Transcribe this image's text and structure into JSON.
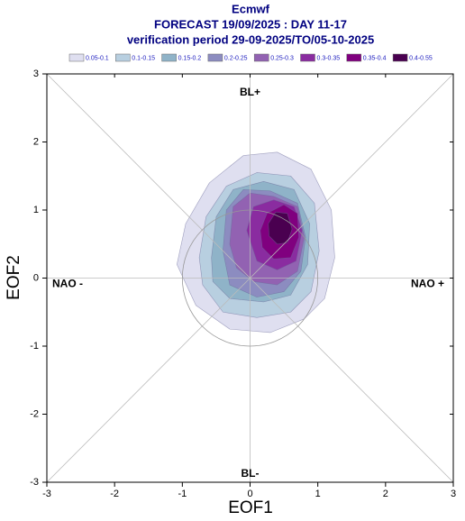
{
  "chart_data": {
    "type": "contour",
    "title": "Ecmwf",
    "subtitle": "FORECAST 19/09/2025 : DAY 11-17",
    "subtitle2": "verification period 29-09-2025/TO/05-10-2025",
    "xlabel": "EOF1",
    "ylabel": "EOF2",
    "xlim": [
      -3,
      3
    ],
    "ylim": [
      -3,
      3
    ],
    "xticks": [
      -3,
      -2,
      -1,
      0,
      1,
      2,
      3
    ],
    "yticks": [
      -3,
      -2,
      -1,
      0,
      1,
      2,
      3
    ],
    "annotations": [
      "BL+",
      "BL-",
      "NAO -",
      "NAO +"
    ],
    "series": [
      {
        "name": "0.05-0.1",
        "color": "#dfdff0",
        "x": [
          -1.08,
          -0.95,
          -0.6,
          -0.1,
          0.4,
          0.9,
          1.2,
          1.25,
          1.1,
          0.8,
          0.3,
          -0.3,
          -0.8
        ],
        "y": [
          0.2,
          0.8,
          1.4,
          1.8,
          1.85,
          1.6,
          1.0,
          0.3,
          -0.3,
          -0.6,
          -0.8,
          -0.75,
          -0.4
        ]
      },
      {
        "name": "0.1-0.15",
        "color": "#b8cfe0",
        "x": [
          -0.75,
          -0.65,
          -0.35,
          0.1,
          0.6,
          0.95,
          1.02,
          0.9,
          0.6,
          0.1,
          -0.4,
          -0.7
        ],
        "y": [
          0.3,
          0.9,
          1.35,
          1.55,
          1.5,
          1.1,
          0.4,
          -0.2,
          -0.5,
          -0.58,
          -0.5,
          -0.1
        ]
      },
      {
        "name": "0.15-0.2",
        "color": "#8fb3c8",
        "x": [
          -0.57,
          -0.5,
          -0.25,
          0.2,
          0.65,
          0.88,
          0.85,
          0.6,
          0.2,
          -0.3,
          -0.55
        ],
        "y": [
          0.3,
          0.9,
          1.3,
          1.42,
          1.3,
          0.8,
          0.2,
          -0.25,
          -0.35,
          -0.3,
          -0.05
        ]
      },
      {
        "name": "0.2-0.25",
        "color": "#8c8cc0",
        "x": [
          -0.4,
          -0.35,
          -0.1,
          0.3,
          0.7,
          0.82,
          0.75,
          0.5,
          0.1,
          -0.3
        ],
        "y": [
          0.4,
          1.0,
          1.3,
          1.28,
          1.1,
          0.6,
          0.1,
          -0.2,
          -0.28,
          -0.1
        ]
      },
      {
        "name": "0.25-0.3",
        "color": "#9262b2",
        "x": [
          -0.3,
          -0.25,
          0,
          0.35,
          0.7,
          0.8,
          0.7,
          0.4,
          0.05,
          -0.2
        ],
        "y": [
          0.5,
          1.05,
          1.25,
          1.2,
          1.05,
          0.6,
          0.1,
          -0.1,
          -0.05,
          0.15
        ]
      },
      {
        "name": "0.3-0.35",
        "color": "#8a2ca0",
        "x": [
          -0.05,
          0.05,
          0.35,
          0.65,
          0.77,
          0.68,
          0.4,
          0.1
        ],
        "y": [
          0.7,
          1.05,
          1.15,
          1.05,
          0.7,
          0.25,
          0.12,
          0.25
        ]
      },
      {
        "name": "0.35-0.4",
        "color": "#80007f",
        "x": [
          0.15,
          0.25,
          0.5,
          0.7,
          0.72,
          0.6,
          0.35,
          0.18
        ],
        "y": [
          0.7,
          0.95,
          1.08,
          0.95,
          0.6,
          0.3,
          0.28,
          0.45
        ]
      },
      {
        "name": "0.4-0.55",
        "color": "#4a0050",
        "x": [
          0.27,
          0.38,
          0.55,
          0.62,
          0.55,
          0.4,
          0.28
        ],
        "y": [
          0.8,
          0.97,
          0.95,
          0.72,
          0.52,
          0.5,
          0.62
        ]
      }
    ]
  }
}
